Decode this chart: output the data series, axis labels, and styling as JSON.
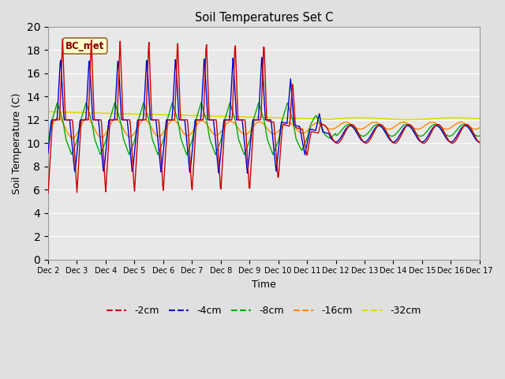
{
  "title": "Soil Temperatures Set C",
  "xlabel": "Time",
  "ylabel": "Soil Temperature (C)",
  "ylim": [
    0,
    20
  ],
  "yticks": [
    0,
    2,
    4,
    6,
    8,
    10,
    12,
    14,
    16,
    18,
    20
  ],
  "background_color": "#e0e0e0",
  "plot_bg_color": "#e8e8e8",
  "legend_label": "BC_met",
  "series": {
    "-2cm": {
      "color": "#cc0000",
      "lw": 1.0
    },
    "-4cm": {
      "color": "#0000cc",
      "lw": 1.0
    },
    "-8cm": {
      "color": "#00aa00",
      "lw": 1.0
    },
    "-16cm": {
      "color": "#ff8800",
      "lw": 1.0
    },
    "-32cm": {
      "color": "#dddd00",
      "lw": 1.2
    }
  },
  "x_labels": [
    "Dec 2",
    "Dec 3",
    "Dec 4",
    "Dec 5",
    "Dec 6",
    "Dec 7",
    "Dec 8",
    "Dec 9",
    "Dec 10",
    "Dec 11",
    "Dec 12",
    "Dec 13",
    "Dec 14",
    "Dec 15",
    "Dec 16",
    "Dec 17"
  ]
}
